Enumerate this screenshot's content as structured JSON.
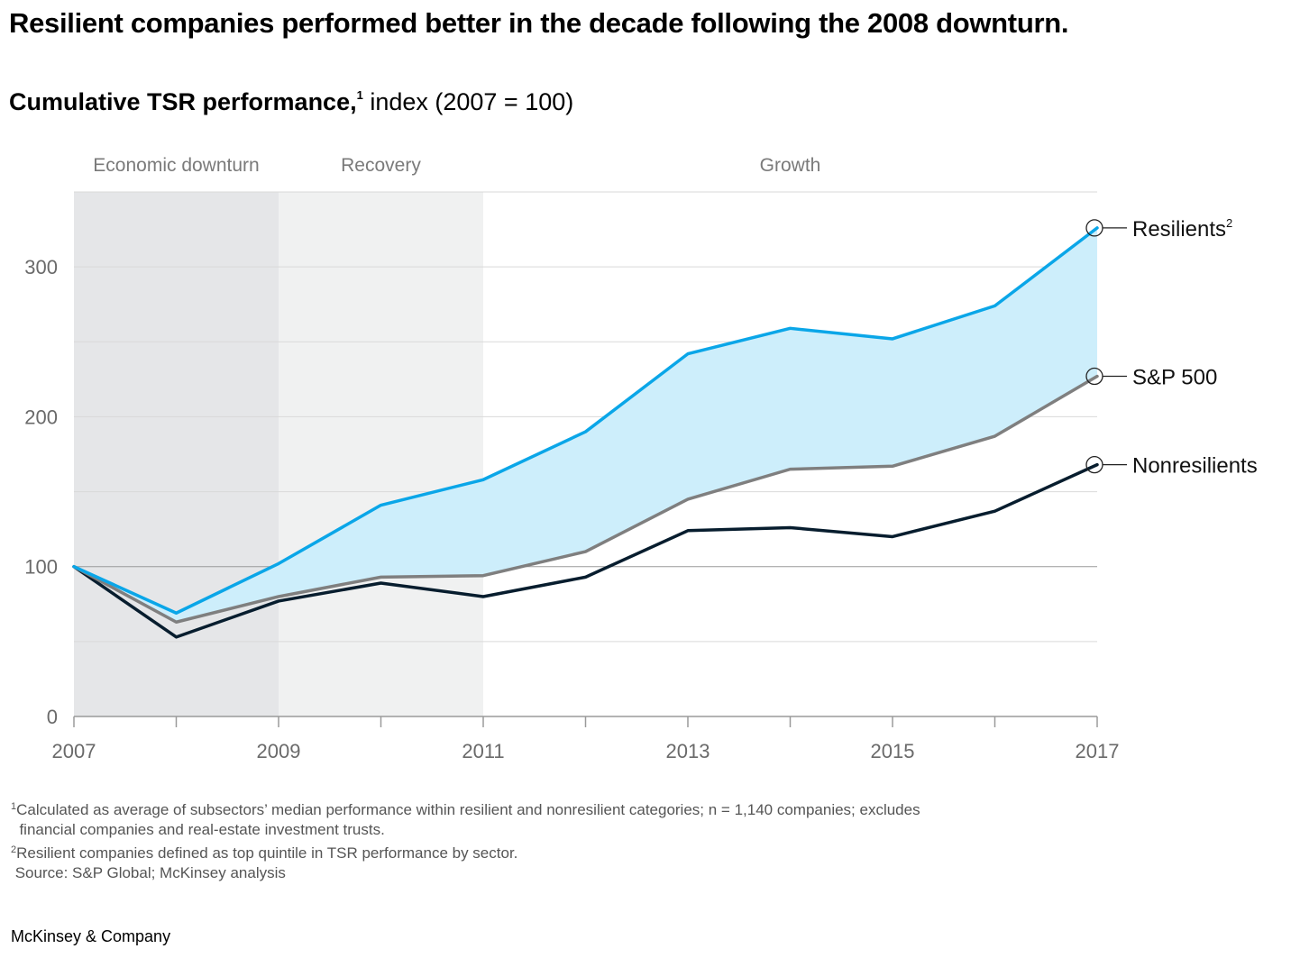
{
  "title": "Resilient companies performed better in the decade following the 2008 downturn.",
  "subtitle": {
    "bold": "Cumulative TSR performance,",
    "sup": "1",
    "rest": " index (2007 = 100)"
  },
  "phases": [
    {
      "label": "Economic downturn",
      "start": 2007,
      "end": 2009,
      "color": "#e5e6e8"
    },
    {
      "label": "Recovery",
      "start": 2009,
      "end": 2011,
      "color": "#f0f1f1"
    },
    {
      "label": "Growth",
      "start": 2011,
      "end": 2017,
      "color": "#ffffff"
    }
  ],
  "chart_data": {
    "type": "line",
    "x": [
      2007,
      2008,
      2009,
      2010,
      2011,
      2012,
      2013,
      2014,
      2015,
      2016,
      2017
    ],
    "x_tick_labels": [
      "2007",
      "2009",
      "2011",
      "2013",
      "2015",
      "2017"
    ],
    "y_ticks": [
      0,
      100,
      200,
      300
    ],
    "ylim": [
      0,
      350
    ],
    "xlim": [
      2007,
      2017
    ],
    "grid": true,
    "series": [
      {
        "name": "Resilients",
        "sup": "2",
        "color": "#0aa6e8",
        "values": [
          100,
          69,
          102,
          141,
          158,
          190,
          242,
          259,
          252,
          274,
          326
        ]
      },
      {
        "name": "S&P 500",
        "sup": "",
        "color": "#7f7f7f",
        "values": [
          100,
          63,
          80,
          93,
          94,
          110,
          145,
          165,
          167,
          187,
          227
        ]
      },
      {
        "name": "Nonresilients",
        "sup": "",
        "color": "#071d2e",
        "values": [
          100,
          53,
          77,
          89,
          80,
          93,
          124,
          126,
          120,
          137,
          168
        ]
      }
    ],
    "band_fill": "#cdeefb"
  },
  "footnotes": [
    {
      "sup": "1",
      "text": "Calculated as average of subsectors’ median performance within resilient and nonresilient categories; n = 1,140 companies; excludes"
    },
    {
      "sup": "",
      "text": "  financial companies and real-estate investment trusts."
    },
    {
      "sup": "2",
      "text": "Resilient companies defined as top quintile in TSR performance by sector."
    },
    {
      "sup": "",
      "text": " Source: S&P Global; McKinsey analysis"
    }
  ],
  "brand": "McKinsey & Company"
}
